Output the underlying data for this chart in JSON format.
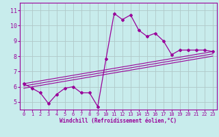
{
  "title": "",
  "xlabel": "Windchill (Refroidissement éolien,°C)",
  "ylabel": "",
  "bg_color": "#c8ecec",
  "line_color": "#990099",
  "grid_color": "#b0c8c8",
  "xlim": [
    -0.5,
    23.5
  ],
  "ylim": [
    4.5,
    11.5
  ],
  "xticks": [
    0,
    1,
    2,
    3,
    4,
    5,
    6,
    7,
    8,
    9,
    10,
    11,
    12,
    13,
    14,
    15,
    16,
    17,
    18,
    19,
    20,
    21,
    22,
    23
  ],
  "yticks": [
    5,
    6,
    7,
    8,
    9,
    10,
    11
  ],
  "scatter_x": [
    0,
    1,
    2,
    3,
    4,
    5,
    6,
    7,
    8,
    9,
    10,
    11,
    12,
    13,
    14,
    15,
    16,
    17,
    18,
    19,
    20,
    21,
    22,
    23
  ],
  "scatter_y": [
    6.2,
    5.9,
    5.6,
    4.9,
    5.5,
    5.9,
    6.0,
    5.6,
    5.6,
    4.7,
    7.8,
    10.8,
    10.4,
    10.7,
    9.7,
    9.3,
    9.5,
    9.0,
    8.1,
    8.4,
    8.4,
    8.4,
    8.4,
    8.3
  ],
  "trend_lines": [
    [
      6.2,
      8.3
    ],
    [
      6.05,
      8.15
    ],
    [
      5.9,
      8.0
    ]
  ]
}
